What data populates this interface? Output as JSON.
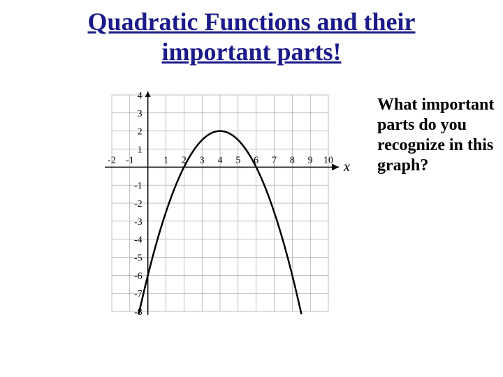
{
  "title_line1": "Quadratic Functions and their",
  "title_line2": "important parts!",
  "question_text": "What important parts do you recognize in this graph?",
  "chart": {
    "type": "line",
    "xlim": [
      -2,
      10
    ],
    "ylim": [
      -8,
      4
    ],
    "xtick_labels_neg": [
      "-2",
      "-1"
    ],
    "xtick_labels_pos": [
      "1",
      "2",
      "3",
      "4",
      "5",
      "6",
      "7",
      "8",
      "9",
      "10"
    ],
    "ytick_labels_pos": [
      "1",
      "2",
      "3",
      "4"
    ],
    "ytick_labels_neg": [
      "-1",
      "-2",
      "-3",
      "-4",
      "-5",
      "-6",
      "-7",
      "-8"
    ],
    "x_axis_label": "x",
    "grid_color": "#808080",
    "axis_color": "#000000",
    "curve_color": "#000000",
    "background_color": "#ffffff",
    "grid_stroke_width": 0.5,
    "axis_stroke_width": 1.5,
    "curve_stroke_width": 2.5,
    "tick_fontsize": 14,
    "label_fontsize": 20,
    "parabola": {
      "vertex_x": 4,
      "vertex_y": 2,
      "a": -0.5,
      "points": [
        [
          -0.47,
          -8
        ],
        [
          0,
          -6
        ],
        [
          1,
          -2.5
        ],
        [
          2,
          0
        ],
        [
          3,
          1.5
        ],
        [
          4,
          2
        ],
        [
          5,
          1.5
        ],
        [
          6,
          0
        ],
        [
          7,
          -2.5
        ],
        [
          8,
          -6
        ],
        [
          8.47,
          -8
        ]
      ]
    }
  }
}
